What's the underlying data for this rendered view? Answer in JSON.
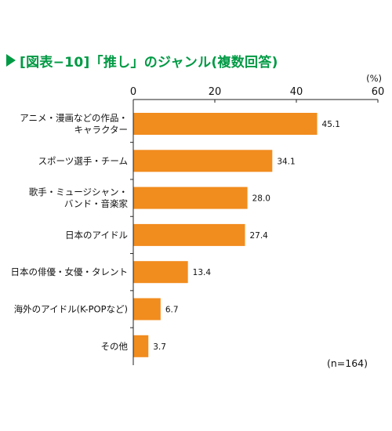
{
  "title": "[図表−10]「推し」のジャンル(複数回答)",
  "colors": {
    "title": "#009a44",
    "bar": "#f18c1e",
    "axis": "#222222",
    "grid": "#bbbbbb"
  },
  "chart_data": {
    "type": "bar",
    "orientation": "horizontal",
    "unit": "(%)",
    "sample_note": "(n=164)",
    "xlim": [
      0,
      60
    ],
    "ticks": [
      "0",
      "20",
      "40",
      "60"
    ],
    "tick_values": [
      0,
      20,
      40,
      60
    ],
    "grid": false,
    "categories": [
      [
        "アニメ・漫画などの作品・",
        "キャラクター"
      ],
      [
        "スポーツ選手・チーム"
      ],
      [
        "歌手・ミュージシャン・",
        "バンド・音楽家"
      ],
      [
        "日本のアイドル"
      ],
      [
        "日本の俳優・女優・タレント"
      ],
      [
        "海外のアイドル(K-POPなど)"
      ],
      [
        "その他"
      ]
    ],
    "values": [
      45.1,
      34.1,
      28.0,
      27.4,
      13.4,
      6.7,
      3.7
    ],
    "value_labels": [
      "45.1",
      "34.1",
      "28.0",
      "27.4",
      "13.4",
      "6.7",
      "3.7"
    ]
  }
}
